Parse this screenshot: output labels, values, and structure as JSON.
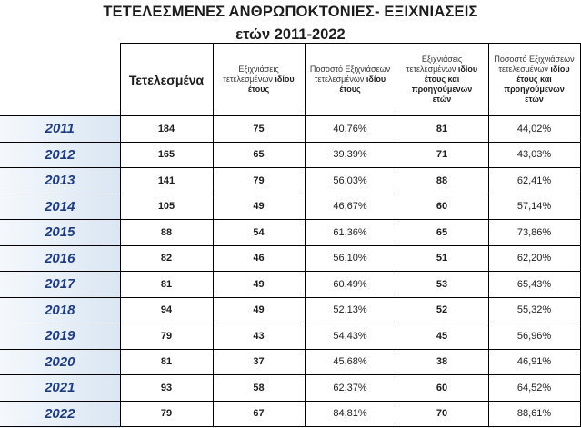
{
  "title": "ΤΕΤΕΛΕΣΜΕΝΕΣ ΑΝΘΡΩΠΟΚΤΟΝΙΕΣ- ΕΞΙΧΝΙΑΣΕΙΣ",
  "subtitle": "ετών 2011-2022",
  "headers": {
    "completed": "Τετελεσμένα",
    "solved_same_year": {
      "line1": "Εξιχνιάσεις",
      "line2": "τετελεσμένων",
      "bold": "ιδίου",
      "line3": "έτους"
    },
    "pct_same_year": {
      "line1": "Ποσοστό Εξιχνιάσεων",
      "line2": "τετελεσμένων",
      "bold": "ιδίου",
      "line3": "έτους"
    },
    "solved_same_prev": {
      "line1": "Εξιχνιάσεις",
      "line2": "τετελεσμένων",
      "bold": "ιδίου",
      "line3": "έτους και",
      "line4": "προηγούμενων",
      "line5": "ετών"
    },
    "pct_same_prev": {
      "line1": "Ποσοστό Εξιχνιάσεων",
      "line2": "τετελεσμένων",
      "bold": "ιδίου",
      "line3": "έτους και",
      "line4": "προηγούμενων",
      "line5": "ετών"
    }
  },
  "rows": [
    {
      "year": "2011",
      "completed": "184",
      "solved_same": "75",
      "pct_same": "40,76%",
      "solved_prev": "81",
      "pct_prev": "44,02%"
    },
    {
      "year": "2012",
      "completed": "165",
      "solved_same": "65",
      "pct_same": "39,39%",
      "solved_prev": "71",
      "pct_prev": "43,03%"
    },
    {
      "year": "2013",
      "completed": "141",
      "solved_same": "79",
      "pct_same": "56,03%",
      "solved_prev": "88",
      "pct_prev": "62,41%"
    },
    {
      "year": "2014",
      "completed": "105",
      "solved_same": "49",
      "pct_same": "46,67%",
      "solved_prev": "60",
      "pct_prev": "57,14%"
    },
    {
      "year": "2015",
      "completed": "88",
      "solved_same": "54",
      "pct_same": "61,36%",
      "solved_prev": "65",
      "pct_prev": "73,86%"
    },
    {
      "year": "2016",
      "completed": "82",
      "solved_same": "46",
      "pct_same": "56,10%",
      "solved_prev": "51",
      "pct_prev": "62,20%"
    },
    {
      "year": "2017",
      "completed": "81",
      "solved_same": "49",
      "pct_same": "60,49%",
      "solved_prev": "53",
      "pct_prev": "65,43%"
    },
    {
      "year": "2018",
      "completed": "94",
      "solved_same": "49",
      "pct_same": "52,13%",
      "solved_prev": "52",
      "pct_prev": "55,32%"
    },
    {
      "year": "2019",
      "completed": "79",
      "solved_same": "43",
      "pct_same": "54,43%",
      "solved_prev": "45",
      "pct_prev": "56,96%"
    },
    {
      "year": "2020",
      "completed": "81",
      "solved_same": "37",
      "pct_same": "45,68%",
      "solved_prev": "38",
      "pct_prev": "46,91%"
    },
    {
      "year": "2021",
      "completed": "93",
      "solved_same": "58",
      "pct_same": "62,37%",
      "solved_prev": "60",
      "pct_prev": "64,52%"
    },
    {
      "year": "2022",
      "completed": "79",
      "solved_same": "67",
      "pct_same": "84,81%",
      "solved_prev": "70",
      "pct_prev": "88,61%"
    }
  ]
}
